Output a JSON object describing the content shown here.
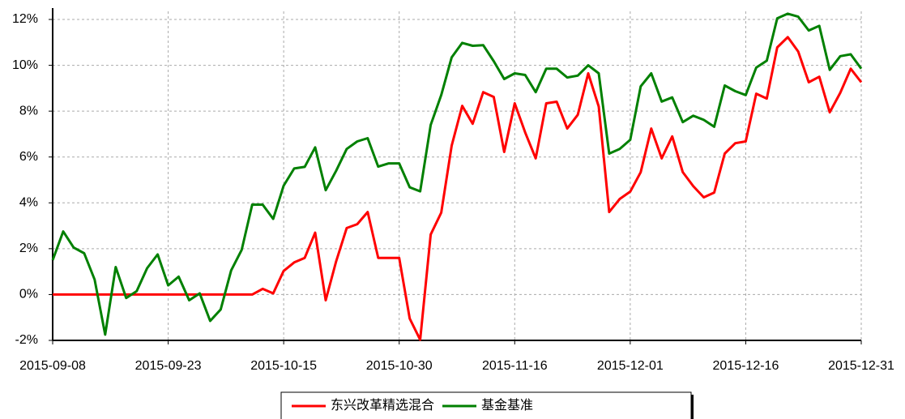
{
  "chart_data": {
    "type": "line",
    "categories": [
      "2015-09-08",
      null,
      null,
      null,
      null,
      null,
      null,
      null,
      null,
      null,
      null,
      "2015-09-23",
      null,
      null,
      null,
      null,
      null,
      null,
      null,
      null,
      null,
      null,
      "2015-10-15",
      null,
      null,
      null,
      null,
      null,
      null,
      null,
      null,
      null,
      null,
      "2015-10-30",
      null,
      null,
      null,
      null,
      null,
      null,
      null,
      null,
      null,
      null,
      "2015-11-16",
      null,
      null,
      null,
      null,
      null,
      null,
      null,
      null,
      null,
      null,
      "2015-12-01",
      null,
      null,
      null,
      null,
      null,
      null,
      null,
      null,
      null,
      null,
      "2015-12-16",
      null,
      null,
      null,
      null,
      null,
      null,
      null,
      null,
      null,
      null,
      "2015-12-31"
    ],
    "series": [
      {
        "name": "东兴改革精选混合",
        "color": "#ff0000",
        "values": [
          0,
          0,
          0,
          0,
          0,
          0,
          0,
          0,
          0,
          0,
          0,
          0,
          0,
          0,
          0,
          0,
          0,
          0,
          0,
          0,
          0.25,
          0.05,
          1.03,
          1.4,
          1.6,
          2.7,
          -0.25,
          1.45,
          2.9,
          3.07,
          3.6,
          1.6,
          1.6,
          1.6,
          -1.05,
          -1.97,
          2.62,
          3.57,
          6.5,
          8.23,
          7.45,
          8.83,
          8.62,
          6.22,
          8.34,
          7.07,
          5.94,
          8.34,
          8.41,
          7.24,
          7.84,
          9.65,
          8.2,
          3.6,
          4.17,
          4.49,
          5.34,
          7.24,
          5.94,
          6.9,
          5.34,
          4.73,
          4.24,
          4.45,
          6.15,
          6.6,
          6.68,
          8.76,
          8.55,
          10.78,
          11.23,
          10.6,
          9.26,
          9.5,
          7.95,
          8.8,
          9.85,
          9.26
        ]
      },
      {
        "name": "基金基准",
        "color": "#008000",
        "values": [
          1.5,
          2.75,
          2.05,
          1.8,
          0.65,
          -1.75,
          1.2,
          -0.15,
          0.15,
          1.15,
          1.75,
          0.4,
          0.78,
          -0.25,
          0.05,
          -1.15,
          -0.65,
          1.05,
          1.95,
          3.92,
          3.92,
          3.3,
          4.75,
          5.5,
          5.57,
          6.42,
          4.55,
          5.4,
          6.35,
          6.68,
          6.82,
          5.58,
          5.72,
          5.72,
          4.68,
          4.5,
          7.4,
          8.7,
          10.35,
          10.98,
          10.85,
          10.88,
          10.18,
          9.4,
          9.65,
          9.58,
          8.83,
          9.85,
          9.85,
          9.47,
          9.55,
          10.0,
          9.65,
          6.15,
          6.35,
          6.75,
          9.08,
          9.65,
          8.42,
          8.6,
          7.52,
          7.8,
          7.62,
          7.32,
          9.12,
          8.87,
          8.7,
          9.9,
          10.2,
          12.05,
          12.25,
          12.12,
          11.52,
          11.72,
          9.8,
          10.4,
          10.48,
          9.85
        ]
      }
    ],
    "ylim": [
      -2,
      12
    ],
    "yticks": [
      {
        "value": -2,
        "label": "-2%"
      },
      {
        "value": 0,
        "label": "0%"
      },
      {
        "value": 2,
        "label": "2%"
      },
      {
        "value": 4,
        "label": "4%"
      },
      {
        "value": 6,
        "label": "6%"
      },
      {
        "value": 8,
        "label": "8%"
      },
      {
        "value": 10,
        "label": "10%"
      },
      {
        "value": 12,
        "label": "12%"
      }
    ],
    "grid": true,
    "legend": "bottom"
  }
}
